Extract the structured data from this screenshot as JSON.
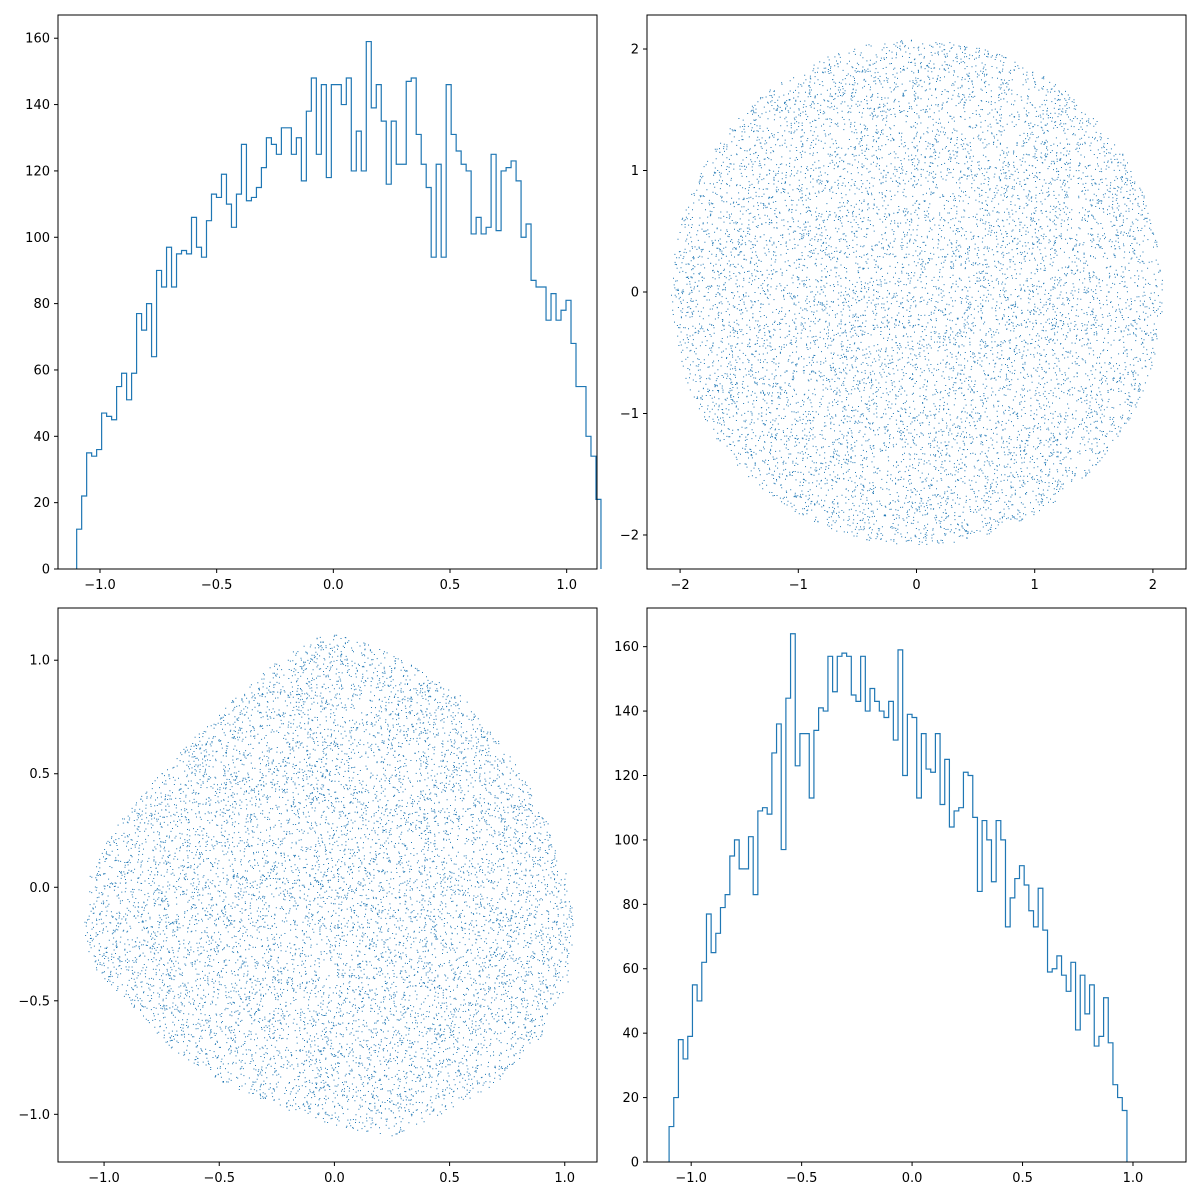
{
  "colors": {
    "series": "#1f77b4"
  },
  "chart_data": [
    {
      "type": "histogram",
      "histtype": "step",
      "grid": false,
      "xlim": [
        -1.18,
        1.13
      ],
      "ylim": [
        0,
        167
      ],
      "xticks": [
        -1.0,
        -0.5,
        0.0,
        0.5,
        1.0
      ],
      "xtick_labels": [
        "−1.0",
        "−0.5",
        "0.0",
        "0.5",
        "1.0"
      ],
      "yticks": [
        0,
        20,
        40,
        60,
        80,
        100,
        120,
        140,
        160
      ],
      "ytick_labels": [
        "0",
        "20",
        "40",
        "60",
        "80",
        "100",
        "120",
        "140",
        "160"
      ],
      "bin_start": -1.1,
      "bin_width": 0.0214,
      "counts": [
        12,
        22,
        35,
        34,
        36,
        47,
        46,
        45,
        55,
        59,
        51,
        59,
        77,
        72,
        80,
        64,
        90,
        85,
        97,
        85,
        95,
        96,
        95,
        106,
        97,
        94,
        105,
        113,
        112,
        119,
        110,
        103,
        113,
        128,
        111,
        112,
        115,
        121,
        130,
        128,
        125,
        133,
        133,
        125,
        130,
        117,
        138,
        148,
        125,
        146,
        118,
        146,
        146,
        140,
        148,
        120,
        132,
        120,
        159,
        139,
        146,
        135,
        116,
        135,
        122,
        122,
        147,
        148,
        131,
        122,
        115,
        94,
        122,
        94,
        146,
        131,
        126,
        122,
        120,
        101,
        106,
        101,
        103,
        125,
        102,
        120,
        121,
        123,
        117,
        100,
        104,
        87,
        85,
        85,
        75,
        83,
        75,
        78,
        81,
        68,
        55,
        55,
        40,
        34,
        21
      ]
    },
    {
      "type": "scatter",
      "grid": false,
      "marker": "pixel",
      "shape": "disk",
      "point_count": 10000,
      "radius": 2.08,
      "xlim": [
        -2.28,
        2.28
      ],
      "ylim": [
        -2.28,
        2.28
      ],
      "xticks": [
        -2,
        -1,
        0,
        1,
        2
      ],
      "xtick_labels": [
        "−2",
        "−1",
        "0",
        "1",
        "2"
      ],
      "yticks": [
        -2,
        -1,
        0,
        1,
        2
      ],
      "ytick_labels": [
        "−2",
        "−1",
        "0",
        "1",
        "2"
      ]
    },
    {
      "type": "scatter",
      "grid": false,
      "marker": "pixel",
      "shape": "rounded-blob",
      "point_count": 10000,
      "outline": [
        [
          -1.09,
          -0.2
        ],
        [
          -1.07,
          0.05
        ],
        [
          -1.0,
          0.2
        ],
        [
          -0.85,
          0.4
        ],
        [
          -0.65,
          0.62
        ],
        [
          -0.45,
          0.82
        ],
        [
          -0.25,
          1.0
        ],
        [
          -0.1,
          1.1
        ],
        [
          0.05,
          1.12
        ],
        [
          0.2,
          1.05
        ],
        [
          0.35,
          0.98
        ],
        [
          0.55,
          0.85
        ],
        [
          0.75,
          0.6
        ],
        [
          0.9,
          0.35
        ],
        [
          1.0,
          0.1
        ],
        [
          1.04,
          -0.15
        ],
        [
          1.02,
          -0.4
        ],
        [
          0.9,
          -0.65
        ],
        [
          0.72,
          -0.85
        ],
        [
          0.5,
          -0.98
        ],
        [
          0.25,
          -1.1
        ],
        [
          0.0,
          -1.05
        ],
        [
          -0.2,
          -0.98
        ],
        [
          -0.45,
          -0.88
        ],
        [
          -0.7,
          -0.72
        ],
        [
          -0.9,
          -0.5
        ],
        [
          -1.05,
          -0.35
        ]
      ],
      "xlim": [
        -1.2,
        1.14
      ],
      "ylim": [
        -1.21,
        1.23
      ],
      "xticks": [
        -1.0,
        -0.5,
        0.0,
        0.5,
        1.0
      ],
      "xtick_labels": [
        "−1.0",
        "−0.5",
        "0.0",
        "0.5",
        "1.0"
      ],
      "yticks": [
        -1.0,
        -0.5,
        0.0,
        0.5,
        1.0
      ],
      "ytick_labels": [
        "−1.0",
        "−0.5",
        "0.0",
        "0.5",
        "1.0"
      ]
    },
    {
      "type": "histogram",
      "histtype": "step",
      "grid": false,
      "xlim": [
        -1.2,
        1.24
      ],
      "ylim": [
        0,
        172
      ],
      "xticks": [
        -1.0,
        -0.5,
        0.0,
        0.5,
        1.0
      ],
      "xtick_labels": [
        "−1.0",
        "−0.5",
        "0.0",
        "0.5",
        "1.0"
      ],
      "yticks": [
        0,
        20,
        40,
        60,
        80,
        100,
        120,
        140,
        160
      ],
      "ytick_labels": [
        "0",
        "20",
        "40",
        "60",
        "80",
        "100",
        "120",
        "140",
        "160"
      ],
      "bin_start": -1.1,
      "bin_width": 0.02115,
      "counts": [
        11,
        20,
        38,
        32,
        39,
        55,
        50,
        62,
        77,
        65,
        71,
        79,
        83,
        95,
        100,
        91,
        91,
        101,
        83,
        109,
        110,
        108,
        127,
        136,
        97,
        144,
        164,
        123,
        133,
        133,
        113,
        134,
        141,
        140,
        157,
        146,
        157,
        158,
        157,
        145,
        143,
        157,
        140,
        147,
        143,
        140,
        138,
        143,
        131,
        159,
        120,
        139,
        138,
        113,
        133,
        122,
        121,
        133,
        111,
        125,
        104,
        109,
        110,
        121,
        120,
        107,
        84,
        106,
        100,
        87,
        106,
        100,
        73,
        82,
        88,
        92,
        86,
        78,
        73,
        85,
        72,
        59,
        60,
        64,
        58,
        53,
        62,
        41,
        58,
        46,
        55,
        36,
        39,
        51,
        37,
        24,
        20,
        16
      ]
    }
  ]
}
